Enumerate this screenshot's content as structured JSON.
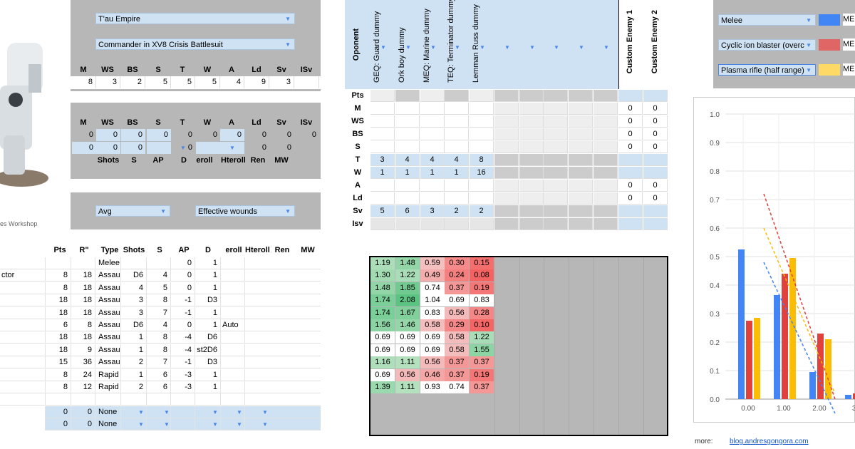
{
  "credit": "es Workshop",
  "faction": "T'au Empire",
  "unit": "Commander in XV8 Crisis Battlesuit",
  "profile_headers": [
    "M",
    "WS",
    "BS",
    "S",
    "T",
    "W",
    "A",
    "Ld",
    "Sv",
    "ISv"
  ],
  "profile_values": [
    "8",
    "3",
    "2",
    "5",
    "5",
    "5",
    "4",
    "9",
    "3",
    ""
  ],
  "mod_headers": [
    "M",
    "WS",
    "BS",
    "S",
    "T",
    "W",
    "A",
    "Ld",
    "Sv",
    "ISv"
  ],
  "mod_row1": [
    "0",
    "0",
    "0",
    "0",
    "0",
    "0",
    "0",
    "0",
    "0",
    "0"
  ],
  "mod_row2": [
    "0",
    "0",
    "0",
    "",
    "0",
    "",
    "",
    "0",
    "0",
    ""
  ],
  "mod_headers2": [
    "Shots",
    "S",
    "AP",
    "D",
    "eroll",
    "Hteroll W",
    "Ren",
    "MW"
  ],
  "mode1": "Avg",
  "mode2": "Effective wounds",
  "weapons_headers": [
    "Pts",
    "R\"",
    "Type",
    "Shots",
    "S",
    "AP",
    "D",
    "eroll",
    "Hteroll W",
    "Ren",
    "MW"
  ],
  "weapons": [
    {
      "name": "",
      "pts": "",
      "range": "",
      "type": "Melee",
      "shots": "",
      "s": "",
      "ap": "0",
      "d": "1",
      "extra": ""
    },
    {
      "name": "ctor",
      "pts": "8",
      "range": "18",
      "type": "Assau",
      "shots": "D6",
      "s": "4",
      "ap": "0",
      "d": "1",
      "extra": ""
    },
    {
      "name": "",
      "pts": "8",
      "range": "18",
      "type": "Assau",
      "shots": "4",
      "s": "5",
      "ap": "0",
      "d": "1",
      "extra": ""
    },
    {
      "name": "",
      "pts": "18",
      "range": "18",
      "type": "Assau",
      "shots": "3",
      "s": "8",
      "ap": "-1",
      "d": "D3",
      "extra": ""
    },
    {
      "name": "",
      "pts": "18",
      "range": "18",
      "type": "Assau",
      "shots": "3",
      "s": "7",
      "ap": "-1",
      "d": "1",
      "extra": ""
    },
    {
      "name": "",
      "pts": "6",
      "range": "8",
      "type": "Assau",
      "shots": "D6",
      "s": "4",
      "ap": "0",
      "d": "1",
      "extra": "Auto"
    },
    {
      "name": "",
      "pts": "18",
      "range": "18",
      "type": "Assau",
      "shots": "1",
      "s": "8",
      "ap": "-4",
      "d": "D6",
      "extra": ""
    },
    {
      "name": "",
      "pts": "18",
      "range": "9",
      "type": "Assau",
      "shots": "1",
      "s": "8",
      "ap": "-4",
      "d": "st2D6",
      "extra": ""
    },
    {
      "name": "",
      "pts": "15",
      "range": "36",
      "type": "Assau",
      "shots": "2",
      "s": "7",
      "ap": "-1",
      "d": "D3",
      "extra": ""
    },
    {
      "name": "",
      "pts": "8",
      "range": "24",
      "type": "Rapid",
      "shots": "1",
      "s": "6",
      "ap": "-3",
      "d": "1",
      "extra": ""
    },
    {
      "name": "",
      "pts": "8",
      "range": "12",
      "type": "Rapid",
      "shots": "2",
      "s": "6",
      "ap": "-3",
      "d": "1",
      "extra": ""
    },
    {
      "name": "",
      "pts": "",
      "range": "",
      "type": "",
      "shots": "",
      "s": "",
      "ap": "",
      "d": "",
      "extra": ""
    },
    {
      "name": "",
      "pts": "0",
      "range": "0",
      "type": "None",
      "shots": "",
      "s": "",
      "ap": "",
      "d": "",
      "extra": ""
    },
    {
      "name": "",
      "pts": "0",
      "range": "0",
      "type": "None",
      "shots": "",
      "s": "",
      "ap": "",
      "d": "",
      "extra": ""
    }
  ],
  "opponent_label": "Oponent",
  "opponents": [
    "GEQ: Guard dummy",
    "Ork boy dummy",
    "MEQ: Marine dummy",
    "TEQ: Terminator dummy",
    "Lemman Russ dummy"
  ],
  "custom_enemies": [
    "Custom Enemy 1",
    "Custom Enemy 2"
  ],
  "stat_rows": [
    "Pts",
    "M",
    "WS",
    "BS",
    "S",
    "T",
    "W",
    "A",
    "Ld",
    "Sv",
    "Isv"
  ],
  "opp_stats": {
    "T": [
      "3",
      "4",
      "4",
      "4",
      "8"
    ],
    "W": [
      "1",
      "1",
      "1",
      "1",
      "16"
    ],
    "Sv": [
      "5",
      "6",
      "3",
      "2",
      "2"
    ]
  },
  "custom_stats": {
    "M": [
      "0",
      "0"
    ],
    "WS": [
      "0",
      "0"
    ],
    "BS": [
      "0",
      "0"
    ],
    "S": [
      "0",
      "0"
    ],
    "A": [
      "0",
      "0"
    ],
    "Ld": [
      "0",
      "0"
    ]
  },
  "results": [
    [
      "1.19",
      "1.48",
      "0.59",
      "0.30",
      "0.15"
    ],
    [
      "1.30",
      "1.22",
      "0.49",
      "0.24",
      "0.08"
    ],
    [
      "1.48",
      "1.85",
      "0.74",
      "0.37",
      "0.19"
    ],
    [
      "1.74",
      "2.08",
      "1.04",
      "0.69",
      "0.83"
    ],
    [
      "1.74",
      "1.67",
      "0.83",
      "0.56",
      "0.28"
    ],
    [
      "1.56",
      "1.46",
      "0.58",
      "0.29",
      "0.10"
    ],
    [
      "0.69",
      "0.69",
      "0.69",
      "0.58",
      "1.22"
    ],
    [
      "0.69",
      "0.69",
      "0.69",
      "0.58",
      "1.55"
    ],
    [
      "1.16",
      "1.11",
      "0.56",
      "0.37",
      "0.37"
    ],
    [
      "0.69",
      "0.56",
      "0.46",
      "0.37",
      "0.19"
    ],
    [
      "1.39",
      "1.11",
      "0.93",
      "0.74",
      "0.37"
    ]
  ],
  "legend": [
    {
      "weapon": "Melee",
      "label": "ME",
      "color": "#4285f4"
    },
    {
      "weapon": "Cyclic ion blaster (overc",
      "label": "ME",
      "color": "#e06666"
    },
    {
      "weapon": "Plasma rifle (half range)",
      "label": "ME",
      "color": "#ffd966"
    }
  ],
  "chart_data": {
    "type": "bar",
    "categories": [
      "0.00",
      "1.00",
      "2.00",
      "3."
    ],
    "ylim": [
      0,
      1.0
    ],
    "yticks": [
      "0.0",
      "0.1",
      "0.2",
      "0.3",
      "0.4",
      "0.5",
      "0.6",
      "0.7",
      "0.8",
      "0.9",
      "1.0"
    ],
    "series": [
      {
        "color": "#4285f4",
        "values": [
          0.525,
          0.365,
          0.095,
          0.015
        ]
      },
      {
        "color": "#e0413c",
        "values": [
          0.275,
          0.44,
          0.23,
          0.02
        ]
      },
      {
        "color": "#fbbc04",
        "values": [
          0.285,
          0.495,
          0.21,
          0.03
        ]
      }
    ],
    "trendlines": [
      {
        "color": "#4285f4",
        "from": [
          1.0,
          0.48
        ],
        "to": [
          3.0,
          -0.05
        ]
      },
      {
        "color": "#e0413c",
        "from": [
          1.0,
          0.72
        ],
        "to": [
          3.0,
          0.0
        ]
      },
      {
        "color": "#fbbc04",
        "from": [
          1.0,
          0.6
        ],
        "to": [
          3.0,
          0.02
        ]
      }
    ],
    "grid": true
  },
  "footer": {
    "label": "more:",
    "link": "blog.andresgongora.com"
  }
}
